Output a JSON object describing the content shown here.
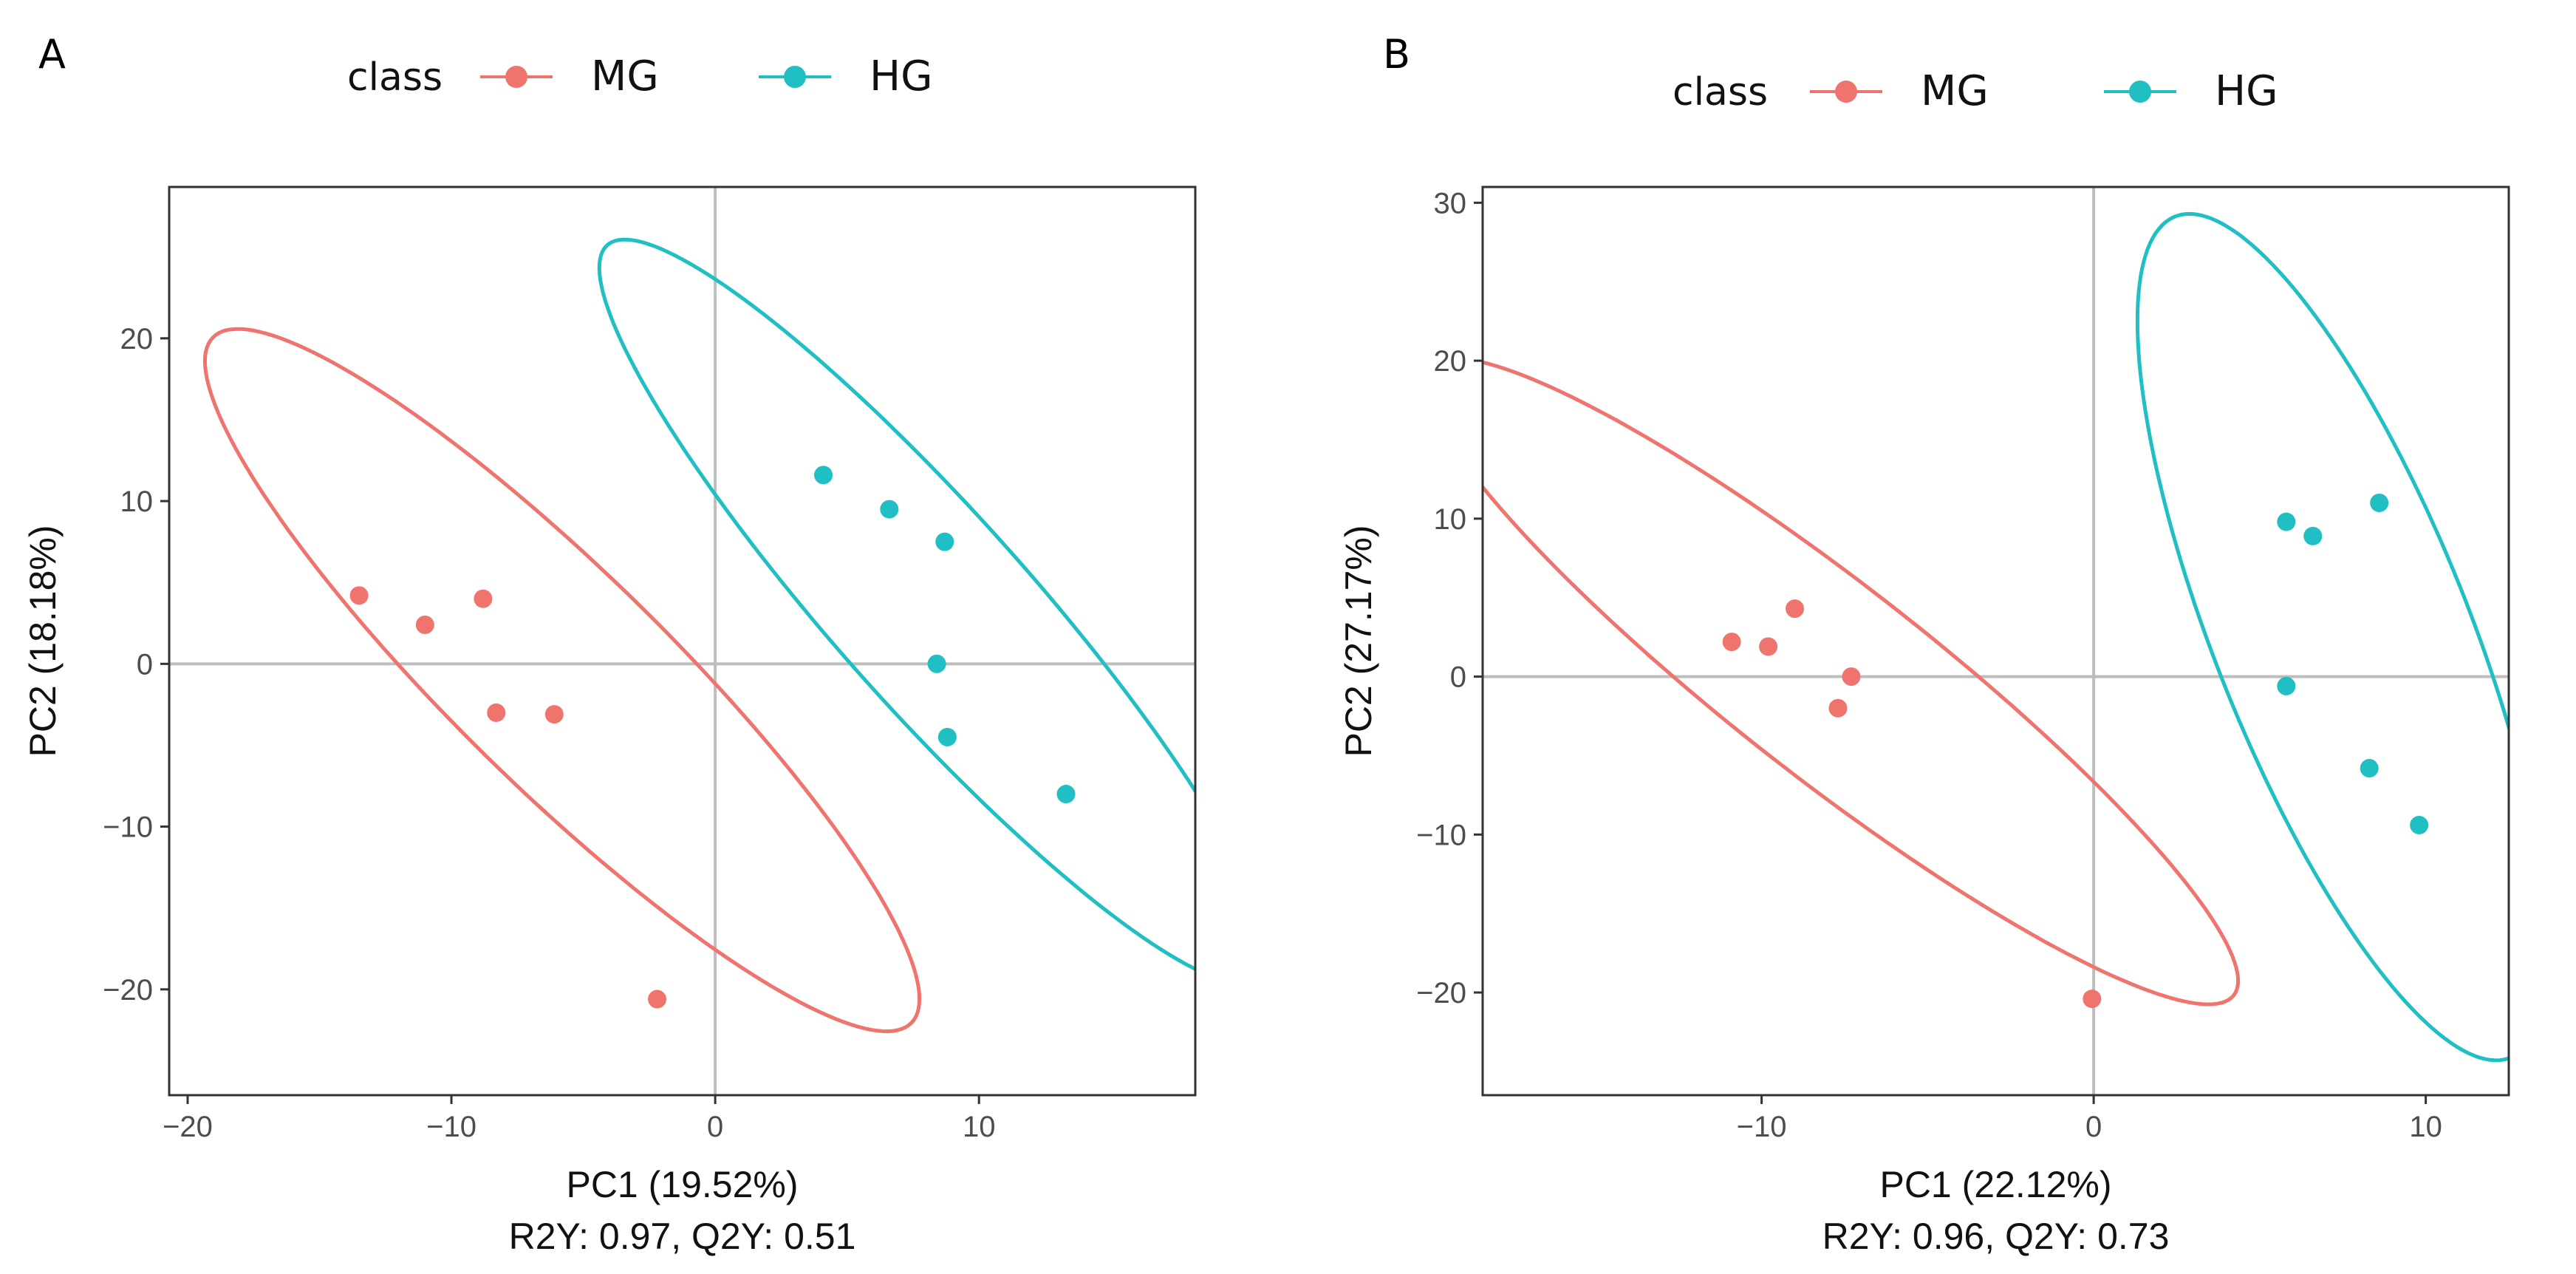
{
  "colors": {
    "MG": "#f0746e",
    "HG": "#1fbfc3"
  },
  "chart_data": [
    {
      "type": "scatter",
      "panel_label": "A",
      "legend": {
        "title": "class",
        "placement": "top",
        "entries": [
          "MG",
          "HG"
        ],
        "key_glyph": "a"
      },
      "xlabel": "PC1 (19.52%)",
      "subtitle": "R2Y: 0.97, Q2Y: 0.51",
      "ylabel": "PC2 (18.18%)",
      "xlim": [
        -20.7,
        18.2
      ],
      "ylim": [
        -26.5,
        29.3
      ],
      "xticks": [
        -20,
        -10,
        0,
        10
      ],
      "yticks": [
        -20,
        -10,
        0,
        10,
        20
      ],
      "tick_labels_x": [
        "−20",
        "−10",
        "0",
        "10"
      ],
      "tick_labels_y": [
        "−20",
        "−10",
        "0",
        "10",
        "20"
      ],
      "grid": false,
      "reference_lines": {
        "x": 0,
        "y": 0
      },
      "series": [
        {
          "name": "MG",
          "points": [
            [
              -13.5,
              4.2
            ],
            [
              -11.0,
              2.4
            ],
            [
              -8.8,
              4.0
            ],
            [
              -8.3,
              -3.0
            ],
            [
              -6.1,
              -3.1
            ],
            [
              -2.2,
              -20.6
            ]
          ],
          "ellipse": {
            "cx": -5.8,
            "cy": -1.0,
            "rx": 25.0,
            "ry": 4.9,
            "angle_deg": -59
          }
        },
        {
          "name": "HG",
          "points": [
            [
              4.1,
              11.6
            ],
            [
              6.6,
              9.5
            ],
            [
              8.7,
              7.5
            ],
            [
              8.4,
              0.0
            ],
            [
              8.8,
              -4.5
            ],
            [
              13.3,
              -8.0
            ]
          ],
          "ellipse": {
            "cx": 8.3,
            "cy": 3.2,
            "rx": 25.8,
            "ry": 4.3,
            "angle_deg": -62
          }
        }
      ]
    },
    {
      "type": "scatter",
      "panel_label": "B",
      "legend": {
        "title": "class",
        "placement": "top",
        "entries": [
          "MG",
          "HG"
        ],
        "key_glyph": "a"
      },
      "xlabel": "PC1 (22.12%)",
      "subtitle": "R2Y: 0.96, Q2Y: 0.73",
      "ylabel": "PC2 (27.17%)",
      "xlim": [
        -18.4,
        12.5
      ],
      "ylim": [
        -26.5,
        31.0
      ],
      "xticks": [
        -10,
        0,
        10
      ],
      "yticks": [
        -20,
        -10,
        0,
        10,
        20,
        30
      ],
      "tick_labels_x": [
        "−10",
        "0",
        "10"
      ],
      "tick_labels_y": [
        "−20",
        "−10",
        "0",
        "10",
        "20",
        "30"
      ],
      "grid": false,
      "reference_lines": {
        "x": 0,
        "y": 0
      },
      "series": [
        {
          "name": "MG",
          "points": [
            [
              -10.9,
              2.2
            ],
            [
              -9.8,
              1.9
            ],
            [
              -9.0,
              4.3
            ],
            [
              -7.3,
              0.0
            ],
            [
              -7.7,
              -2.0
            ],
            [
              -0.05,
              -20.4
            ]
          ],
          "ellipse": {
            "cx": -7.9,
            "cy": -0.3,
            "rx": 23.5,
            "ry": 4.0,
            "angle_deg": -60
          }
        },
        {
          "name": "HG",
          "points": [
            [
              5.8,
              9.8
            ],
            [
              6.6,
              8.9
            ],
            [
              8.6,
              11.0
            ],
            [
              5.8,
              -0.6
            ],
            [
              8.3,
              -5.8
            ],
            [
              9.8,
              -9.4
            ]
          ],
          "ellipse": {
            "cx": 7.5,
            "cy": 2.5,
            "rx": 27.2,
            "ry": 4.05,
            "angle_deg": -80
          }
        }
      ]
    }
  ]
}
